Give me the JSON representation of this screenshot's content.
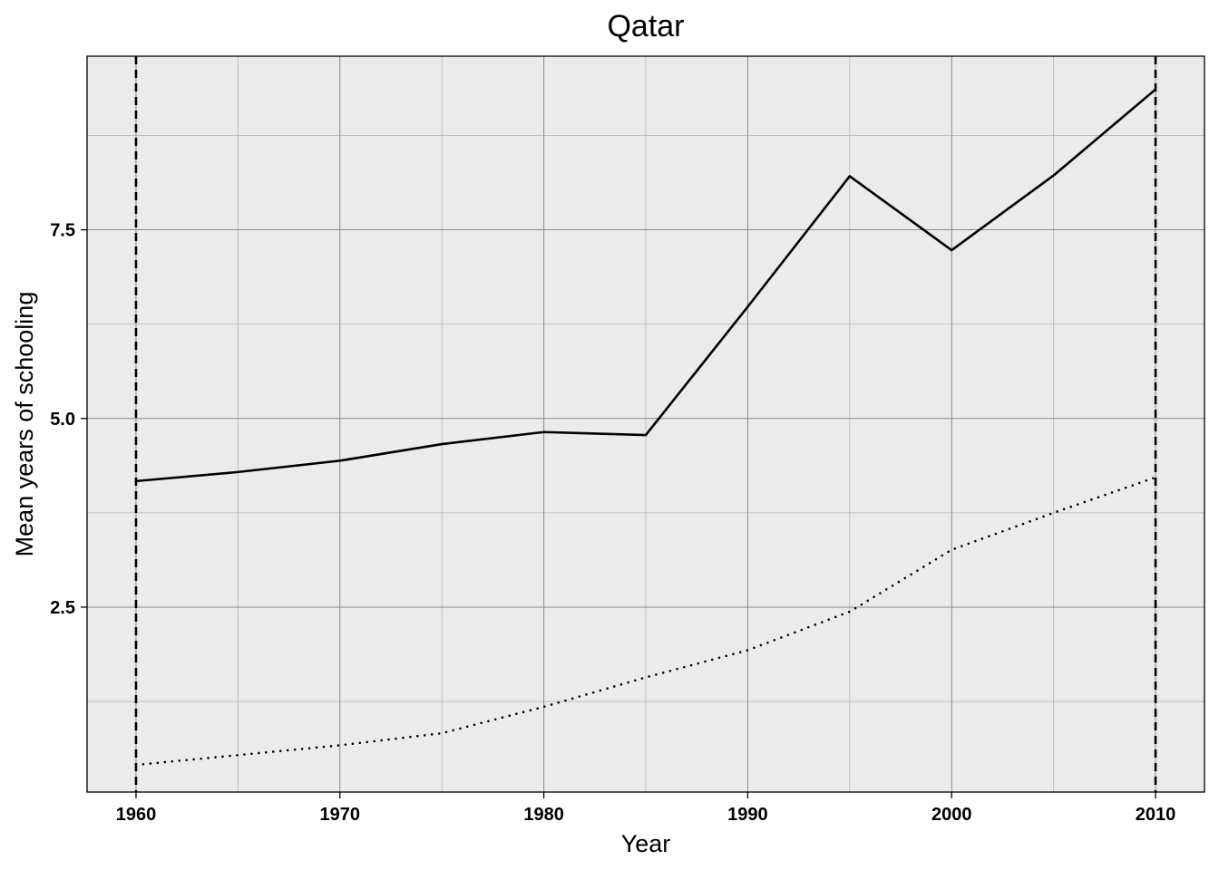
{
  "chart_data": {
    "type": "line",
    "title": "Qatar",
    "xlabel": "Year",
    "ylabel": "Mean years of schooling",
    "xlim": [
      1957.6,
      2012.4
    ],
    "ylim": [
      0.05,
      9.8
    ],
    "x_ticks": [
      1960,
      1970,
      1980,
      1990,
      2000,
      2010
    ],
    "x_minor_ticks": [
      1965,
      1975,
      1985,
      1995,
      2005
    ],
    "y_ticks": [
      2.5,
      5.0,
      7.5
    ],
    "y_tick_labels": [
      "2.5",
      "5.0",
      "7.5"
    ],
    "y_minor_ticks": [
      1.25,
      3.75,
      6.25,
      8.75
    ],
    "grid": true,
    "background": "#ebebeb",
    "vertical_reference_lines": [
      1960,
      2010
    ],
    "series": [
      {
        "style": "solid",
        "color": "#000000",
        "x": [
          1960,
          1965,
          1970,
          1975,
          1980,
          1985,
          1990,
          1995,
          2000,
          2005,
          2010
        ],
        "values": [
          4.17,
          4.29,
          4.44,
          4.66,
          4.82,
          4.78,
          6.48,
          8.21,
          7.23,
          8.22,
          9.36
        ]
      },
      {
        "style": "dotted",
        "color": "#000000",
        "x": [
          1960,
          1965,
          1970,
          1975,
          1980,
          1985,
          1990,
          1995,
          2000,
          2005,
          2010
        ],
        "values": [
          0.41,
          0.54,
          0.67,
          0.83,
          1.18,
          1.57,
          1.93,
          2.44,
          3.26,
          3.75,
          4.22
        ]
      }
    ]
  }
}
